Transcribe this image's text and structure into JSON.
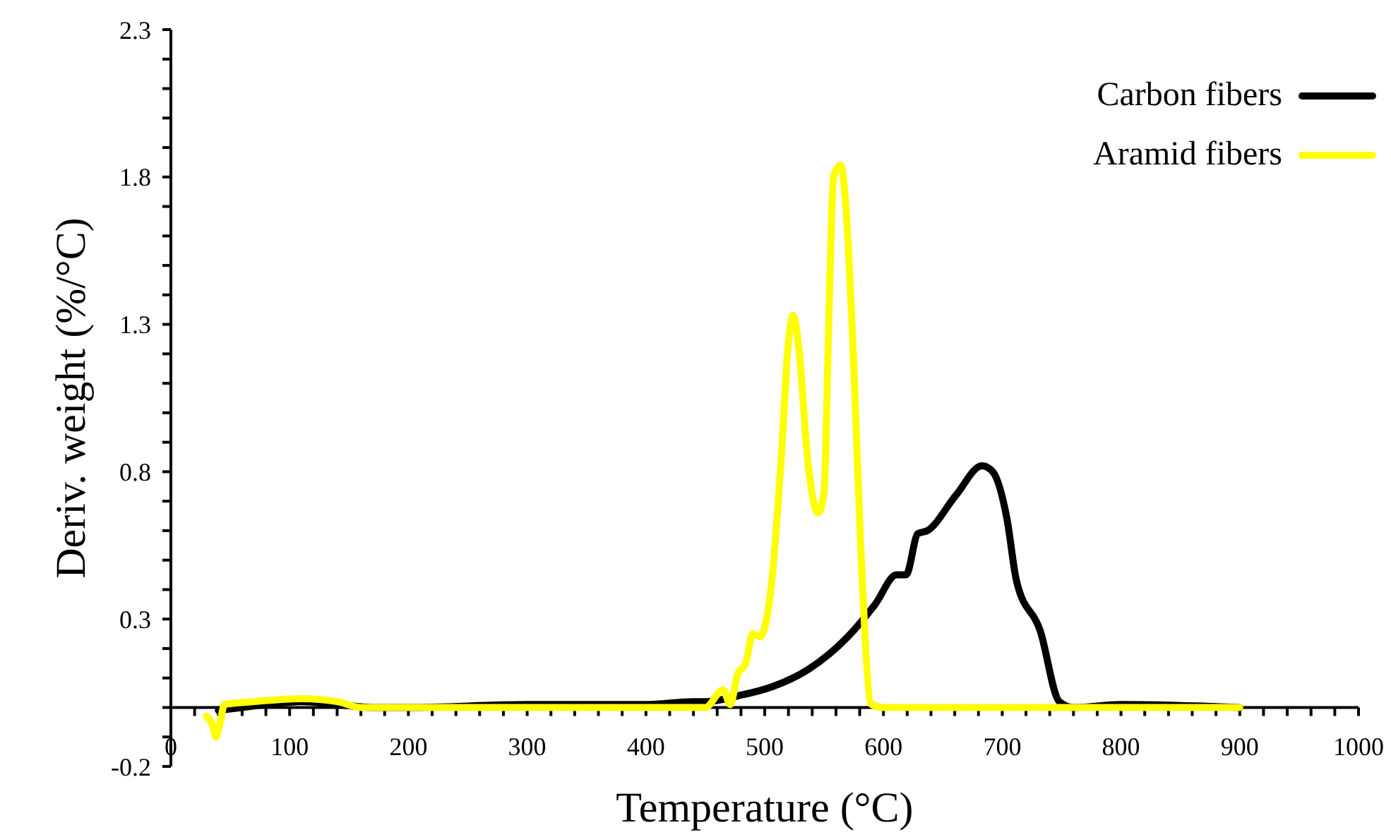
{
  "chart_data": {
    "type": "line",
    "xlabel": "Temperature (°C)",
    "ylabel": "Deriv. weight (%/°C)",
    "xlim": [
      0,
      1000
    ],
    "ylim": [
      -0.2,
      2.3
    ],
    "xticks": [
      0,
      {
        "value": 20,
        "label": null
      },
      {
        "value": 40,
        "label": null
      },
      {
        "value": 60,
        "label": null
      },
      {
        "value": 80,
        "label": null
      },
      100,
      {
        "value": 120,
        "label": null
      },
      {
        "value": 140,
        "label": null
      },
      {
        "value": 160,
        "label": null
      },
      {
        "value": 180,
        "label": null
      },
      200,
      {
        "value": 220,
        "label": null
      },
      {
        "value": 240,
        "label": null
      },
      {
        "value": 260,
        "label": null
      },
      {
        "value": 280,
        "label": null
      },
      300,
      {
        "value": 320,
        "label": null
      },
      {
        "value": 340,
        "label": null
      },
      {
        "value": 360,
        "label": null
      },
      {
        "value": 380,
        "label": null
      },
      400,
      {
        "value": 420,
        "label": null
      },
      {
        "value": 440,
        "label": null
      },
      {
        "value": 460,
        "label": null
      },
      {
        "value": 480,
        "label": null
      },
      500,
      {
        "value": 520,
        "label": null
      },
      {
        "value": 540,
        "label": null
      },
      {
        "value": 560,
        "label": null
      },
      {
        "value": 580,
        "label": null
      },
      600,
      {
        "value": 620,
        "label": null
      },
      {
        "value": 640,
        "label": null
      },
      {
        "value": 660,
        "label": null
      },
      {
        "value": 680,
        "label": null
      },
      700,
      {
        "value": 720,
        "label": null
      },
      {
        "value": 740,
        "label": null
      },
      {
        "value": 760,
        "label": null
      },
      {
        "value": 780,
        "label": null
      },
      800,
      {
        "value": 820,
        "label": null
      },
      {
        "value": 840,
        "label": null
      },
      {
        "value": 860,
        "label": null
      },
      {
        "value": 880,
        "label": null
      },
      900,
      {
        "value": 920,
        "label": null
      },
      {
        "value": 940,
        "label": null
      },
      {
        "value": 960,
        "label": null
      },
      {
        "value": 980,
        "label": null
      },
      1000
    ],
    "yticks": [
      -0.2,
      {
        "value": -0.1,
        "label": null
      },
      {
        "value": 0,
        "label": null
      },
      {
        "value": 0.1,
        "label": null
      },
      {
        "value": 0.2,
        "label": null
      },
      0.3,
      {
        "value": 0.4,
        "label": null
      },
      {
        "value": 0.5,
        "label": null
      },
      {
        "value": 0.6,
        "label": null
      },
      {
        "value": 0.7,
        "label": null
      },
      0.8,
      {
        "value": 0.9,
        "label": null
      },
      {
        "value": 1.0,
        "label": null
      },
      {
        "value": 1.1,
        "label": null
      },
      {
        "value": 1.2,
        "label": null
      },
      1.3,
      {
        "value": 1.4,
        "label": null
      },
      {
        "value": 1.5,
        "label": null
      },
      {
        "value": 1.6,
        "label": null
      },
      {
        "value": 1.7,
        "label": null
      },
      1.8,
      {
        "value": 1.9,
        "label": null
      },
      {
        "value": 2.0,
        "label": null
      },
      {
        "value": 2.1,
        "label": null
      },
      {
        "value": 2.2,
        "label": null
      },
      2.3
    ],
    "grid": false,
    "legend": "top right",
    "marker": "none",
    "line_style": "solid",
    "series": [
      {
        "name": "Carbon fibers",
        "color": "#000000",
        "x": [
          40,
          60,
          80,
          110,
          140,
          170,
          200,
          300,
          400,
          440,
          451,
          478,
          506,
          537,
          570,
          593,
          611,
          619,
          629,
          637,
          661,
          683,
          692,
          704,
          712,
          732,
          748,
          760,
          800,
          900
        ],
        "values": [
          -0.01,
          0,
          0.01,
          0.02,
          0.01,
          0,
          0,
          0.01,
          0.01,
          0.02,
          0.02,
          0.04,
          0.07,
          0.13,
          0.24,
          0.35,
          0.45,
          0.45,
          0.59,
          0.6,
          0.72,
          0.82,
          0.8,
          0.64,
          0.43,
          0.26,
          0.02,
          0,
          0.01,
          0
        ]
      },
      {
        "name": "Aramid fibers",
        "color": "#ffff00",
        "x": [
          30,
          35,
          38,
          42,
          45,
          70,
          110,
          140,
          160,
          200,
          300,
          400,
          450,
          465,
          471,
          477,
          484,
          490,
          496,
          506,
          514,
          520,
          524,
          529,
          536,
          545,
          550,
          554,
          558,
          564,
          568,
          575,
          581,
          590,
          600,
          700,
          800,
          900
        ],
        "values": [
          -0.03,
          -0.06,
          -0.1,
          -0.04,
          0.01,
          0.02,
          0.03,
          0.02,
          0,
          0,
          0,
          0,
          0,
          0.06,
          0.01,
          0.11,
          0.15,
          0.25,
          0.24,
          0.43,
          0.85,
          1.24,
          1.33,
          1.21,
          0.85,
          0.66,
          0.73,
          1.32,
          1.8,
          1.84,
          1.72,
          1.16,
          0.53,
          0.01,
          0,
          0,
          0,
          0
        ]
      }
    ]
  }
}
